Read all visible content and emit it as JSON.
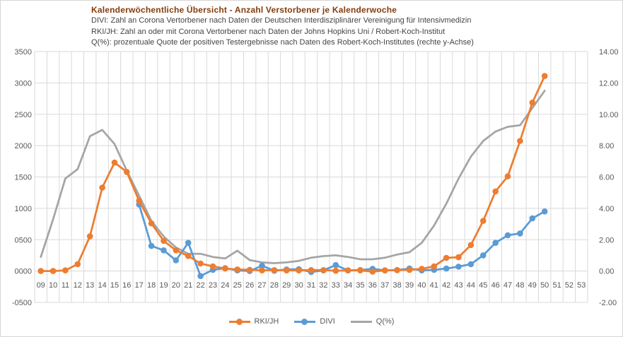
{
  "header": {
    "title": "Kalenderwöchentliche Übersicht - Anzahl Verstorbener je Kalenderwoche",
    "subtitle_divi": "DIVI: Zahl an Corona Vertorbener nach Daten der Deutschen Interdisziplinärer Vereinigung für Intensivmedizin",
    "subtitle_rki": "RKI/JH: Zahl an oder mit Corona Vertorbener nach Daten der Johns Hopkins Uni / Robert-Koch-Institut",
    "subtitle_q": "Q(%): prozentuale Quote der positiven Testergebnisse nach Daten des Robert-Koch-Institutes (rechte y-Achse)"
  },
  "colors": {
    "title": "#843C0C",
    "subtitle": "#444444",
    "axis_label": "#595959",
    "grid": "#D9D9D9",
    "rki_jh": "#ED7D31",
    "divi": "#5B9BD5",
    "q_percent": "#A5A5A5"
  },
  "chart_data": {
    "type": "line",
    "title": "Kalenderwöchentliche Übersicht - Anzahl Verstorbener je Kalenderwoche",
    "xlabel": "Kalenderwoche",
    "grid": true,
    "legend_position": "bottom",
    "categories": [
      "09",
      "10",
      "11",
      "12",
      "13",
      "14",
      "15",
      "16",
      "17",
      "18",
      "19",
      "20",
      "21",
      "22",
      "23",
      "24",
      "25",
      "26",
      "27",
      "28",
      "29",
      "30",
      "31",
      "32",
      "33",
      "34",
      "35",
      "36",
      "37",
      "38",
      "39",
      "40",
      "41",
      "42",
      "43",
      "44",
      "45",
      "46",
      "47",
      "48",
      "49",
      "50",
      "51",
      "52",
      "53"
    ],
    "left_axis": {
      "min": -500,
      "max": 3500,
      "step": 500,
      "ticks": [
        "3500",
        "3000",
        "2500",
        "2000",
        "1500",
        "1000",
        "0500",
        "0000",
        "-0500"
      ]
    },
    "right_axis": {
      "min": -2,
      "max": 14,
      "step": 2,
      "ticks": [
        "14.00",
        "12.00",
        "10.00",
        "8.00",
        "6.00",
        "4.00",
        "2.00",
        "0.00",
        "-2.00"
      ]
    },
    "series": [
      {
        "name": "RKI/JH",
        "color": "#ED7D31",
        "axis": "left",
        "marker": true,
        "values": [
          0,
          0,
          10,
          110,
          555,
          1330,
          1730,
          1580,
          1120,
          760,
          480,
          330,
          240,
          120,
          75,
          40,
          25,
          20,
          10,
          15,
          10,
          10,
          15,
          15,
          5,
          10,
          10,
          -10,
          10,
          15,
          20,
          35,
          75,
          210,
          220,
          415,
          800,
          1270,
          1510,
          2075,
          2685,
          3110,
          null,
          null,
          null
        ]
      },
      {
        "name": "DIVI",
        "color": "#5B9BD5",
        "axis": "left",
        "marker": true,
        "values": [
          null,
          null,
          null,
          null,
          null,
          null,
          null,
          null,
          1060,
          400,
          330,
          170,
          450,
          -80,
          20,
          45,
          10,
          0,
          85,
          5,
          25,
          30,
          -15,
          10,
          95,
          10,
          15,
          35,
          10,
          15,
          40,
          10,
          20,
          40,
          70,
          110,
          250,
          450,
          570,
          600,
          840,
          950,
          null,
          null,
          null
        ]
      },
      {
        "name": "Q(%)",
        "color": "#A5A5A5",
        "axis": "right",
        "marker": false,
        "values": [
          0.9,
          3.3,
          5.9,
          6.5,
          8.6,
          9.0,
          8.1,
          6.4,
          4.8,
          3.2,
          2.2,
          1.5,
          1.1,
          1.1,
          0.9,
          0.8,
          1.3,
          0.7,
          0.55,
          0.5,
          0.55,
          0.65,
          0.85,
          0.95,
          1.0,
          0.9,
          0.75,
          0.75,
          0.85,
          1.05,
          1.2,
          1.8,
          2.9,
          4.3,
          5.9,
          7.3,
          8.3,
          8.9,
          9.2,
          9.3,
          10.4,
          11.5,
          null,
          null,
          null
        ]
      }
    ]
  }
}
